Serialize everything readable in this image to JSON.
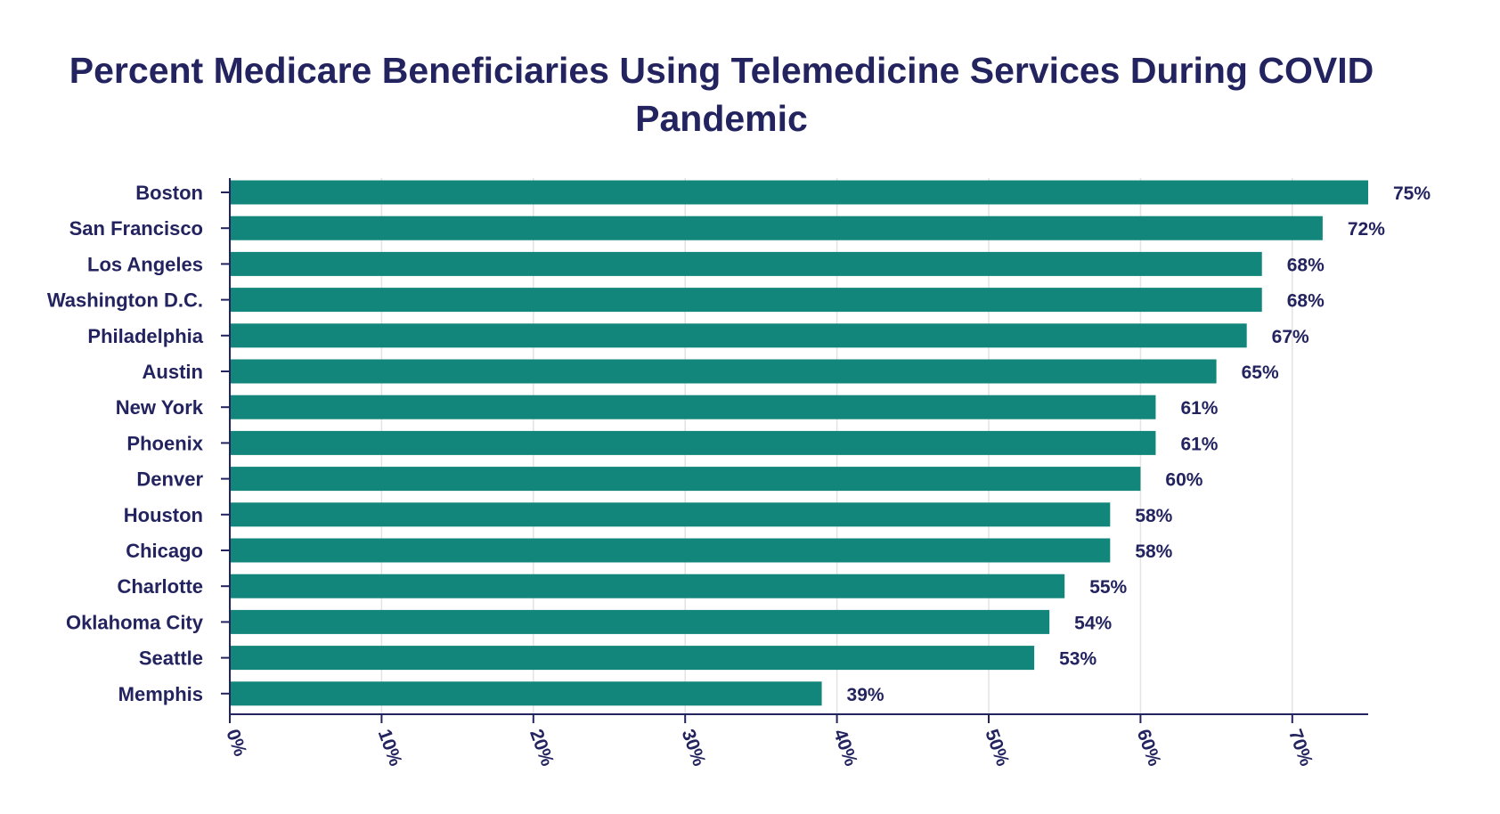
{
  "chart_data": {
    "type": "bar",
    "orientation": "horizontal",
    "title": "Percent Medicare Beneficiaries Using Telemedicine Services During COVID Pandemic",
    "categories": [
      "Boston",
      "San Francisco",
      "Los Angeles",
      "Washington D.C.",
      "Philadelphia",
      "Austin",
      "New York",
      "Phoenix",
      "Denver",
      "Houston",
      "Chicago",
      "Charlotte",
      "Oklahoma City",
      "Seattle",
      "Memphis"
    ],
    "values": [
      75,
      72,
      68,
      68,
      67,
      65,
      61,
      61,
      60,
      58,
      58,
      55,
      54,
      53,
      39
    ],
    "value_labels": [
      "75%",
      "72%",
      "68%",
      "68%",
      "67%",
      "65%",
      "61%",
      "61%",
      "60%",
      "58%",
      "58%",
      "55%",
      "54%",
      "53%",
      "39%"
    ],
    "xticks": [
      0,
      10,
      20,
      30,
      40,
      50,
      60,
      70
    ],
    "xtick_labels": [
      "0%",
      "10%",
      "20%",
      "30%",
      "40%",
      "50%",
      "60%",
      "70%"
    ],
    "xlim": [
      0,
      75
    ],
    "xlabel": "",
    "ylabel": "",
    "grid": "vertical",
    "legend": "none",
    "colors": {
      "bar": "#12867a",
      "text": "#23235f",
      "axis": "#23235f",
      "grid": "#e3e3e3"
    }
  }
}
